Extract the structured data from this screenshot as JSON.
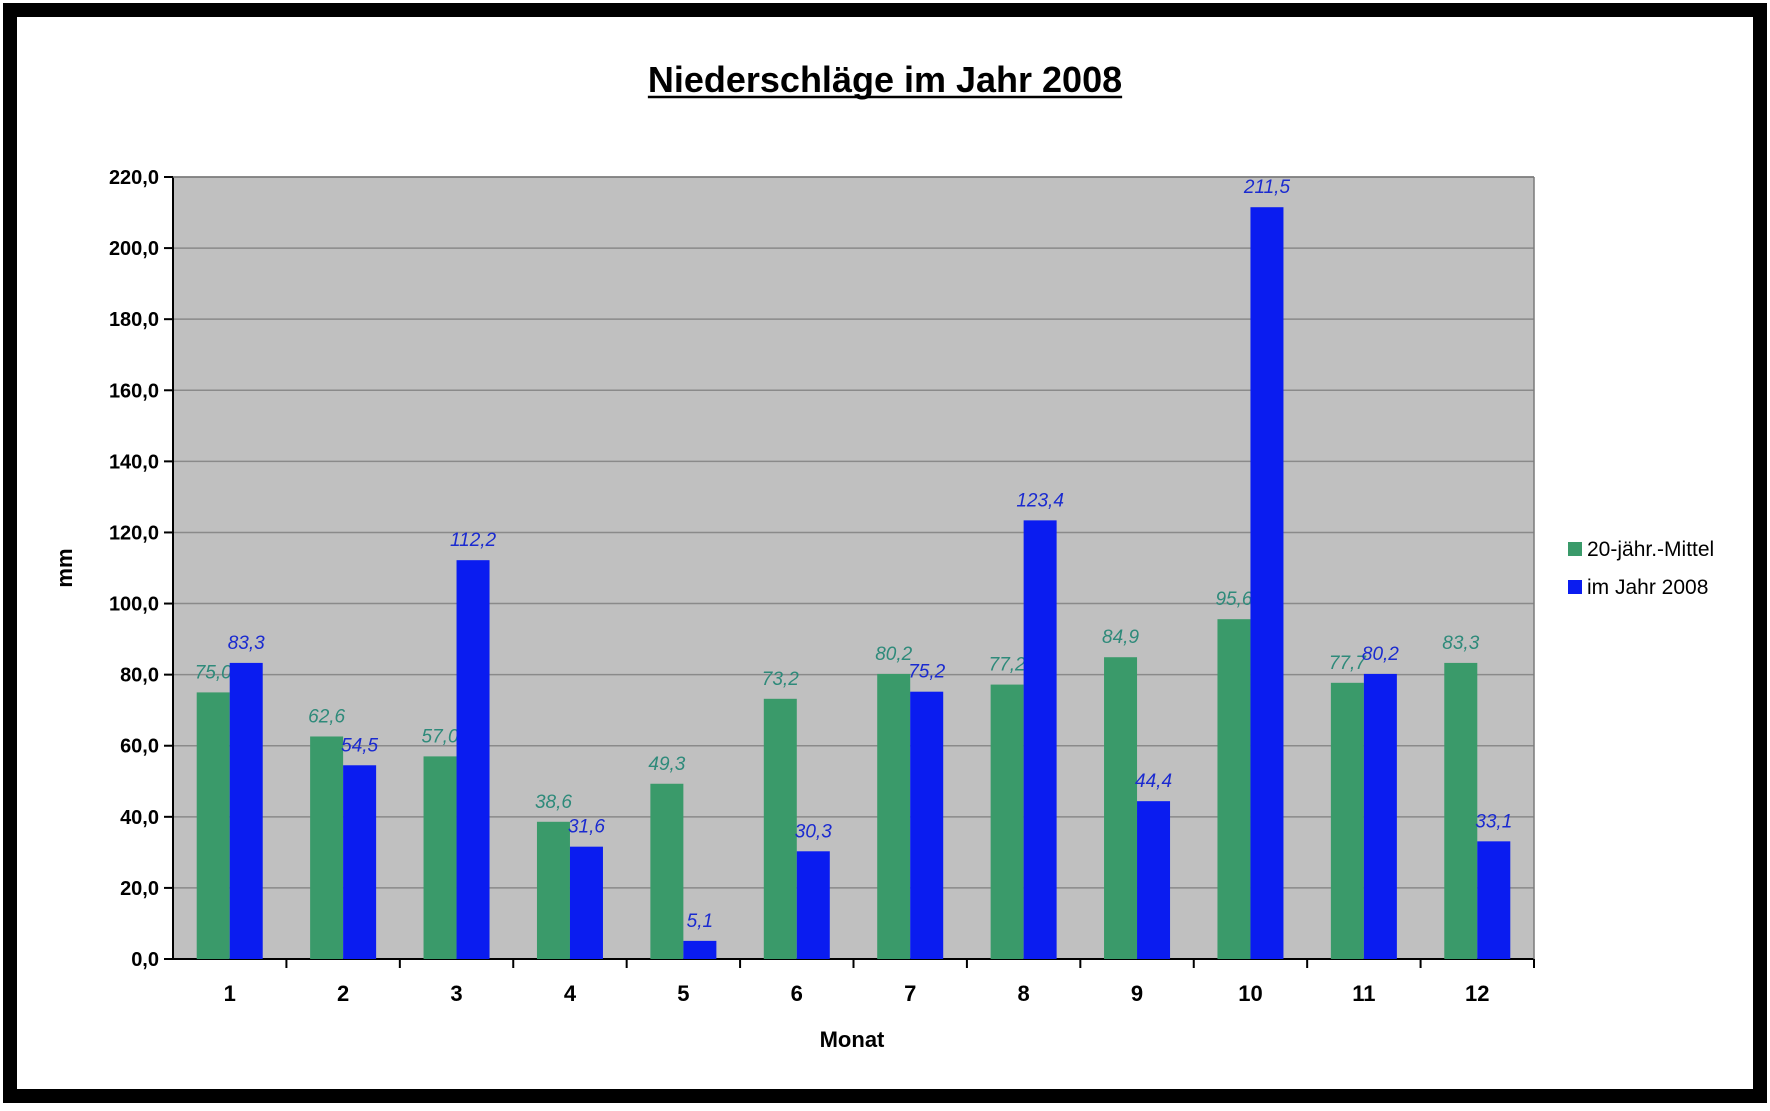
{
  "chart_data": {
    "type": "bar",
    "title": "Niederschläge im Jahr 2008",
    "xlabel": "Monat",
    "ylabel": "mm",
    "categories": [
      "1",
      "2",
      "3",
      "4",
      "5",
      "6",
      "7",
      "8",
      "9",
      "10",
      "11",
      "12"
    ],
    "ylim": [
      0,
      220
    ],
    "yticks": [
      "0,0",
      "20,0",
      "40,0",
      "60,0",
      "80,0",
      "100,0",
      "120,0",
      "140,0",
      "160,0",
      "180,0",
      "200,0",
      "220,0"
    ],
    "grid": true,
    "legend_position": "right",
    "series": [
      {
        "name": "20-jähr.-Mittel",
        "color": "#3a9a6a",
        "label_color": "#2e8a7a",
        "values": [
          75.0,
          62.6,
          57.0,
          38.6,
          49.3,
          73.2,
          80.2,
          77.2,
          84.9,
          95.6,
          77.7,
          83.3
        ],
        "labels": [
          "75,0",
          "62,6",
          "57,0",
          "38,6",
          "49,3",
          "73,2",
          "80,2",
          "77,2",
          "84,9",
          "95,6",
          "77,7",
          "83,3"
        ]
      },
      {
        "name": "im Jahr 2008",
        "color": "#0a1cf0",
        "label_color": "#1a2ad0",
        "values": [
          83.3,
          54.5,
          112.2,
          31.6,
          5.1,
          30.3,
          75.2,
          123.4,
          44.4,
          211.5,
          80.2,
          33.1
        ],
        "labels": [
          "83,3",
          "54,5",
          "112,2",
          "31,6",
          "5,1",
          "30,3",
          "75,2",
          "123,4",
          "44,4",
          "211,5",
          "80,2",
          "33,1"
        ]
      }
    ],
    "plot_background": "#c0c0c0",
    "frame_color": "#000000"
  }
}
